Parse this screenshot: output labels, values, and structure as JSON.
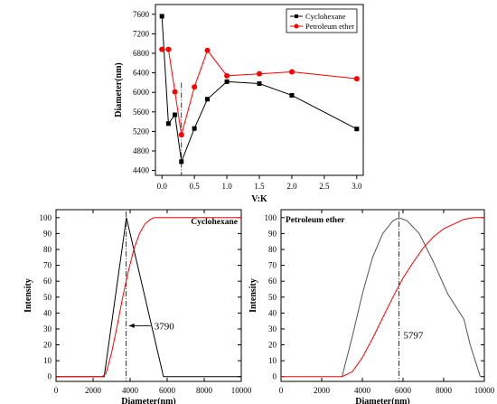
{
  "chart_data": [
    {
      "type": "line",
      "xlabel": "V:K",
      "ylabel": "Diameter(nm)",
      "xlim": [
        -0.1,
        3.1
      ],
      "ylim": [
        4300,
        7800
      ],
      "xticks": [
        0.0,
        0.5,
        1.0,
        1.5,
        2.0,
        2.5,
        3.0
      ],
      "xtick_labels": [
        "0.0",
        "0.5",
        "1.0",
        "1.5",
        "2.0",
        "2.5",
        "3.0"
      ],
      "yticks": [
        4400,
        4800,
        5200,
        5600,
        6000,
        6400,
        6800,
        7200,
        7600
      ],
      "ytick_labels": [
        "4400",
        "4800",
        "5200",
        "5600",
        "6000",
        "6400",
        "6800",
        "7200",
        "7600"
      ],
      "legend": "top-right",
      "grid": false,
      "annotation_line_x": 0.3,
      "series": [
        {
          "name": "Cyclohexane",
          "color": "#000000",
          "marker": "square",
          "x": [
            0.0,
            0.1,
            0.2,
            0.3,
            0.5,
            0.7,
            1.0,
            1.5,
            2.0,
            3.0
          ],
          "y": [
            7560,
            5360,
            5540,
            4580,
            5260,
            5860,
            6220,
            6180,
            5940,
            5250
          ]
        },
        {
          "name": "Petroleum ether",
          "color": "#ff0000",
          "marker": "circle",
          "x": [
            0.0,
            0.1,
            0.2,
            0.3,
            0.5,
            0.7,
            1.0,
            1.5,
            2.0,
            3.0
          ],
          "y": [
            6880,
            6880,
            6010,
            5130,
            6110,
            6860,
            6340,
            6380,
            6420,
            6280
          ]
        }
      ]
    },
    {
      "type": "line",
      "title": "Cyclohexane",
      "xlabel": "Diameter(nm)",
      "ylabel": "Intensity",
      "xlim": [
        0,
        10000
      ],
      "ylim": [
        -3,
        105
      ],
      "xticks": [
        0,
        2000,
        4000,
        6000,
        8000,
        10000
      ],
      "xtick_labels": [
        "0",
        "2000",
        "4000",
        "6000",
        "8000",
        "10000"
      ],
      "yticks": [
        0,
        10,
        20,
        30,
        40,
        50,
        60,
        70,
        80,
        90,
        100
      ],
      "ytick_labels": [
        "0",
        "10",
        "20",
        "30",
        "40",
        "50",
        "60",
        "70",
        "80",
        "90",
        "100"
      ],
      "peak_x": 3790,
      "annotation": "3790",
      "series": [
        {
          "color": "#000000",
          "x": [
            0,
            2600,
            3800,
            5800,
            10000
          ],
          "y": [
            0,
            0,
            100,
            0,
            0
          ]
        },
        {
          "color": "#ff0000",
          "x": [
            0,
            2500,
            2700,
            3000,
            3300,
            3600,
            3900,
            4200,
            4500,
            4800,
            5100,
            5300,
            10000
          ],
          "y": [
            0,
            0,
            2,
            15,
            32,
            50,
            66,
            80,
            90,
            96,
            99,
            100,
            100
          ]
        }
      ]
    },
    {
      "type": "line",
      "title": "Petroleum ether",
      "xlabel": "Diameter(nm)",
      "ylabel": "Intensity",
      "xlim": [
        0,
        10000
      ],
      "ylim": [
        -3,
        105
      ],
      "xticks": [
        0,
        2000,
        4000,
        6000,
        8000,
        10000
      ],
      "xtick_labels": [
        "0",
        "2000",
        "4000",
        "6000",
        "8000",
        "10000"
      ],
      "yticks": [
        0,
        10,
        20,
        30,
        40,
        50,
        60,
        70,
        80,
        90,
        100
      ],
      "ytick_labels": [
        "0",
        "10",
        "20",
        "30",
        "40",
        "50",
        "60",
        "70",
        "80",
        "90",
        "100"
      ],
      "peak_x": 5797,
      "annotation": "5797",
      "series": [
        {
          "color": "#555555",
          "x": [
            3000,
            3500,
            4000,
            4500,
            5000,
            5500,
            5800,
            6200,
            6800,
            7500,
            8200,
            9000,
            9300,
            9800
          ],
          "y": [
            0,
            25,
            52,
            75,
            90,
            98,
            100,
            98,
            90,
            72,
            52,
            36,
            20,
            0
          ]
        },
        {
          "color": "#ff0000",
          "x": [
            0,
            3000,
            3500,
            4000,
            4500,
            5000,
            5500,
            6000,
            6500,
            7000,
            7500,
            8000,
            8500,
            9000,
            9500,
            10000
          ],
          "y": [
            0,
            0,
            3,
            12,
            24,
            37,
            50,
            62,
            72,
            81,
            88,
            93,
            96,
            99,
            100,
            100
          ]
        }
      ]
    }
  ]
}
